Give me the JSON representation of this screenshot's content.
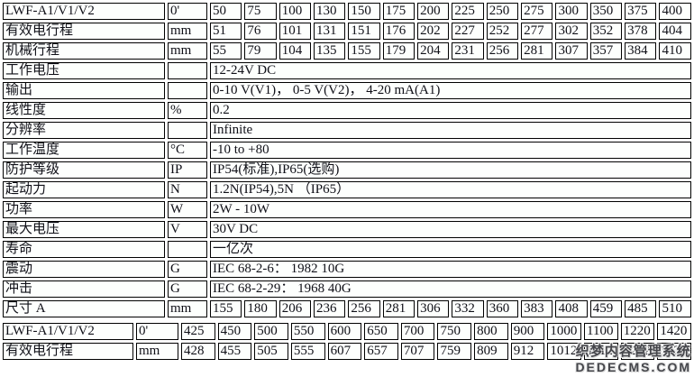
{
  "colors": {
    "border": "#000000",
    "cell_background": "#fdfffd",
    "text": "#101018",
    "watermark_text": "#45464b"
  },
  "spec_table_primary": {
    "num_value_columns": 14,
    "rows": [
      {
        "label": "LWF-A1/V1/V2",
        "unit": "0'",
        "values": [
          "50",
          "75",
          "100",
          "130",
          "150",
          "175",
          "200",
          "225",
          "250",
          "275",
          "300",
          "350",
          "375",
          "400"
        ]
      },
      {
        "label": "有效电行程",
        "unit": "mm",
        "values": [
          "51",
          "76",
          "101",
          "131",
          "151",
          "176",
          "202",
          "227",
          "252",
          "277",
          "302",
          "352",
          "378",
          "404"
        ]
      },
      {
        "label": "机械行程",
        "unit": "mm",
        "values": [
          "55",
          "79",
          "104",
          "135",
          "155",
          "179",
          "204",
          "231",
          "256",
          "281",
          "307",
          "357",
          "384",
          "410"
        ]
      },
      {
        "label": "工作电压",
        "unit": "",
        "span": "12-24V DC"
      },
      {
        "label": "输出",
        "unit": "",
        "span": "0-10 V(V1)， 0-5 V(V2)， 4-20 mA(A1)"
      },
      {
        "label": "线性度",
        "unit": "%",
        "span": "0.2"
      },
      {
        "label": "分辨率",
        "unit": "",
        "span": "Infinite"
      },
      {
        "label": "工作温度",
        "unit": "°C",
        "span": "-10 to +80"
      },
      {
        "label": "防护等级",
        "unit": "IP",
        "span": "IP54(标准),IP65(选购)"
      },
      {
        "label": "起动力",
        "unit": "N",
        "span": "1.2N(IP54),5N （IP65）"
      },
      {
        "label": "功率",
        "unit": "W",
        "span": "2W - 10W"
      },
      {
        "label": "最大电压",
        "unit": "V",
        "span": "30V DC"
      },
      {
        "label": "寿命",
        "unit": "",
        "span": "一亿次"
      },
      {
        "label": "震动",
        "unit": "G",
        "span": "IEC 68-2-6： 1982 10G"
      },
      {
        "label": "冲击",
        "unit": "G",
        "span": "IEC 68-2-29： 1968 40G"
      },
      {
        "label": "尺寸 A",
        "unit": "mm",
        "values": [
          "155",
          "180",
          "206",
          "236",
          "256",
          "281",
          "306",
          "332",
          "360",
          "383",
          "408",
          "459",
          "485",
          "510"
        ]
      }
    ]
  },
  "spec_table_extended": {
    "num_value_columns": 14,
    "rows": [
      {
        "label": "LWF-A1/V1/V2",
        "unit": "0'",
        "values": [
          "425",
          "450",
          "500",
          "550",
          "600",
          "650",
          "700",
          "750",
          "800",
          "900",
          "1000",
          "1100",
          "1220",
          "1420"
        ]
      },
      {
        "label": "有效电行程",
        "unit": "mm",
        "values": [
          "428",
          "455",
          "505",
          "555",
          "607",
          "657",
          "707",
          "759",
          "809",
          "912",
          "1012",
          "1112",
          "1232",
          "1432"
        ]
      }
    ]
  },
  "watermark": {
    "line1": "织梦内容管理系统",
    "line2": "DEDECMS.COM"
  }
}
